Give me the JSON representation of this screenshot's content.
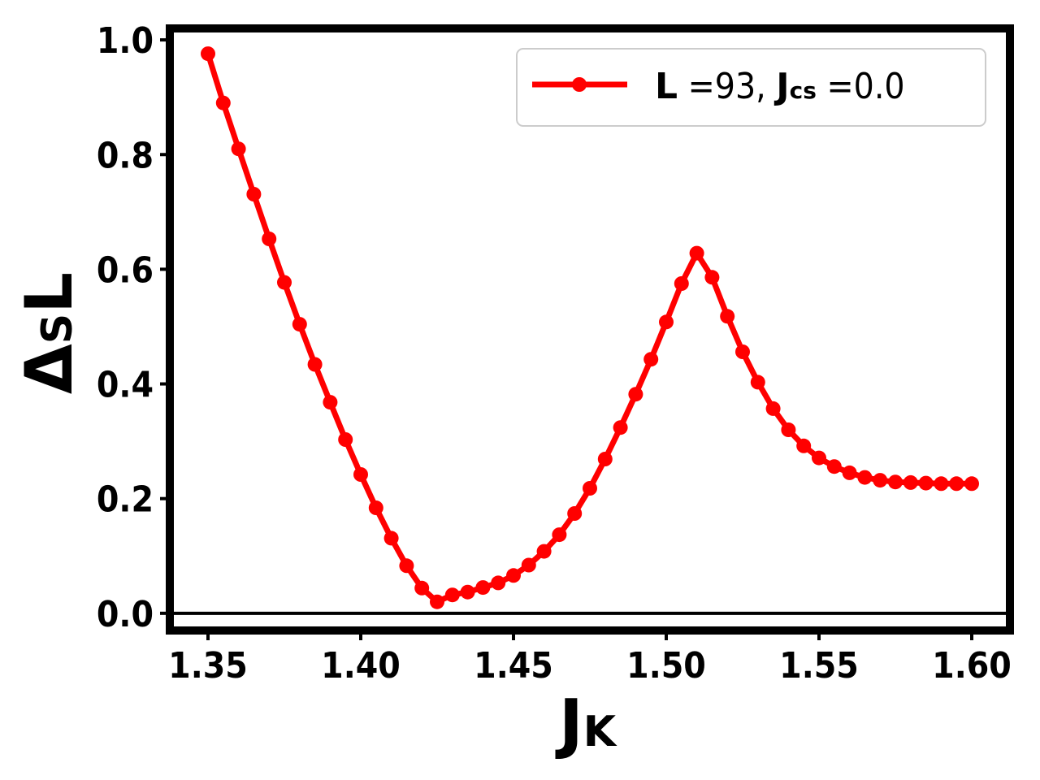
{
  "chart_data": {
    "type": "line",
    "x": [
      1.35,
      1.355,
      1.36,
      1.365,
      1.37,
      1.375,
      1.38,
      1.385,
      1.39,
      1.395,
      1.4,
      1.405,
      1.41,
      1.415,
      1.42,
      1.425,
      1.43,
      1.435,
      1.44,
      1.445,
      1.45,
      1.455,
      1.46,
      1.465,
      1.47,
      1.475,
      1.48,
      1.485,
      1.49,
      1.495,
      1.5,
      1.505,
      1.51,
      1.515,
      1.52,
      1.525,
      1.53,
      1.535,
      1.54,
      1.545,
      1.55,
      1.555,
      1.56,
      1.565,
      1.57,
      1.575,
      1.58,
      1.585,
      1.59,
      1.595,
      1.6
    ],
    "series": [
      {
        "name_parts": {
          "l_sym": "L",
          "l_eq": " =93, ",
          "j_sym": "J",
          "j_sub": "cs",
          "j_eq": " =0.0"
        },
        "color": "#ff0000",
        "values": [
          0.976,
          0.89,
          0.81,
          0.731,
          0.653,
          0.577,
          0.504,
          0.434,
          0.368,
          0.303,
          0.242,
          0.184,
          0.131,
          0.083,
          0.044,
          0.02,
          0.032,
          0.037,
          0.045,
          0.053,
          0.066,
          0.084,
          0.108,
          0.137,
          0.174,
          0.218,
          0.269,
          0.324,
          0.382,
          0.443,
          0.508,
          0.575,
          0.628,
          0.586,
          0.518,
          0.456,
          0.403,
          0.357,
          0.32,
          0.292,
          0.271,
          0.256,
          0.245,
          0.237,
          0.232,
          0.229,
          0.228,
          0.227,
          0.226,
          0.226,
          0.226
        ]
      }
    ],
    "xlabel": {
      "main": "J",
      "sub": "K"
    },
    "ylabel": {
      "main": "Δ",
      "sub": "S",
      "tail": "L"
    },
    "xlim": [
      1.3375,
      1.6125
    ],
    "ylim": [
      -0.03,
      1.02
    ],
    "xticks": [
      "1.35",
      "1.40",
      "1.45",
      "1.50",
      "1.55",
      "1.60"
    ],
    "yticks": [
      "0.0",
      "0.2",
      "0.4",
      "0.6",
      "0.8",
      "1.0"
    ],
    "reference_line_y": 0.0,
    "grid": false,
    "legend_position": "top-right"
  }
}
